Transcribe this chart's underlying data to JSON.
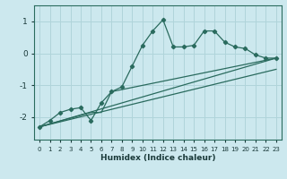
{
  "title": "",
  "xlabel": "Humidex (Indice chaleur)",
  "xlim": [
    -0.5,
    23.5
  ],
  "ylim": [
    -2.7,
    1.5
  ],
  "yticks": [
    -2,
    -1,
    0,
    1
  ],
  "xticks": [
    0,
    1,
    2,
    3,
    4,
    5,
    6,
    7,
    8,
    9,
    10,
    11,
    12,
    13,
    14,
    15,
    16,
    17,
    18,
    19,
    20,
    21,
    22,
    23
  ],
  "bg_color": "#cce8ee",
  "grid_color": "#b0d4da",
  "line_color": "#2a6b5e",
  "wavy_x": [
    0,
    1,
    2,
    3,
    4,
    5,
    6,
    7,
    8,
    9,
    10,
    11,
    12,
    13,
    14,
    15,
    16,
    17,
    18,
    19,
    20,
    21,
    22,
    23
  ],
  "wavy_y": [
    -2.3,
    -2.1,
    -1.85,
    -1.75,
    -1.7,
    -2.1,
    -1.55,
    -1.2,
    -1.05,
    -0.4,
    0.25,
    0.7,
    1.05,
    0.2,
    0.2,
    0.25,
    0.7,
    0.7,
    0.35,
    0.2,
    0.15,
    -0.05,
    -0.15,
    -0.15
  ],
  "line1_x": [
    0,
    5,
    6,
    7,
    23
  ],
  "line1_y": [
    -2.3,
    -1.85,
    -1.85,
    -1.2,
    -0.15
  ],
  "line2_x": [
    0,
    23
  ],
  "line2_y": [
    -2.3,
    -0.5
  ],
  "line3_x": [
    0,
    23
  ],
  "line3_y": [
    -2.3,
    -0.15
  ]
}
